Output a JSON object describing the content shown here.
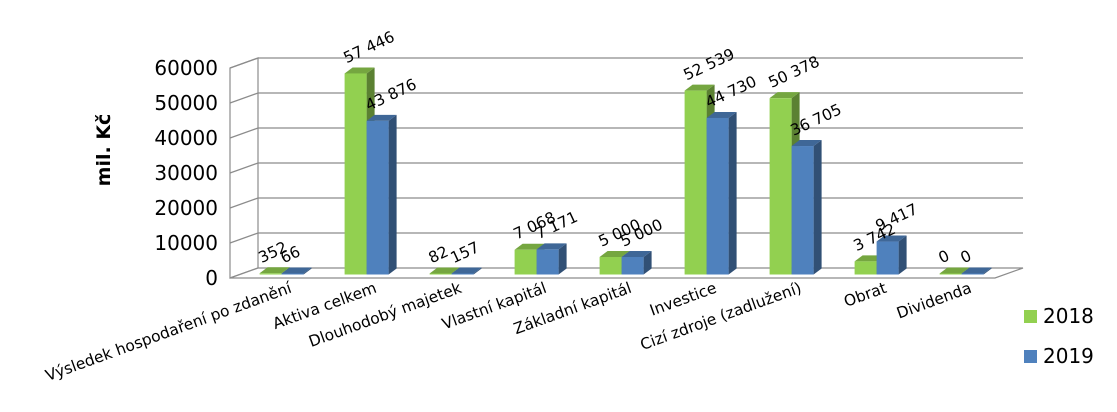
{
  "chart_data": {
    "type": "bar",
    "ylabel": "mil. Kč",
    "ylim": [
      0,
      60000
    ],
    "yticks": [
      "0",
      "10000",
      "20000",
      "30000",
      "40000",
      "50000",
      "60000"
    ],
    "grid": true,
    "legend_position": "right",
    "categories": [
      "Výsledek hospodaření po zdanění",
      "Aktiva celkem",
      "Dlouhodobý majetek",
      "Vlastní kapitál",
      "Základní kapitál",
      "Investice",
      "Cizí zdroje (zadlužení)",
      "Obrat",
      "Dividenda"
    ],
    "series": [
      {
        "name": "2018",
        "color": "#92d050",
        "values": [
          352,
          57446,
          82,
          7068,
          5000,
          52539,
          50378,
          3742,
          0
        ],
        "labels": [
          "352",
          "57 446",
          "82",
          "7 068",
          "5 000",
          "52 539",
          "50 378",
          "3 742",
          "0"
        ]
      },
      {
        "name": "2019",
        "color": "#4f81bd",
        "values": [
          66,
          43876,
          157,
          7171,
          5000,
          44730,
          36705,
          9417,
          0
        ],
        "labels": [
          "66",
          "43 876",
          "157",
          "7 171",
          "5 000",
          "44 730",
          "36 705",
          "9 417",
          "0"
        ]
      }
    ]
  }
}
